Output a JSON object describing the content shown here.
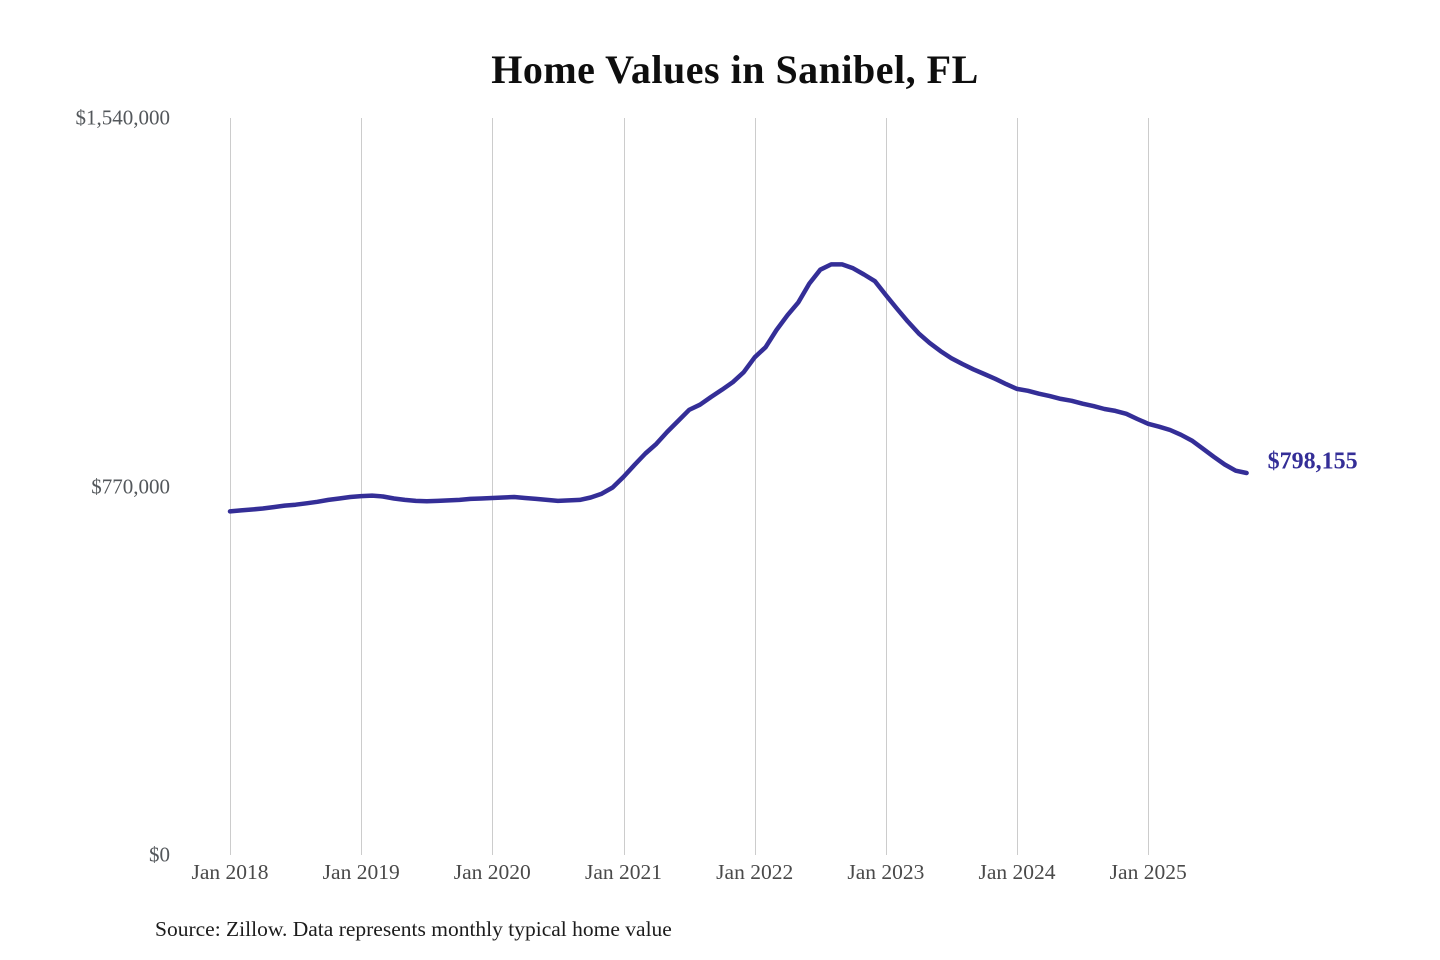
{
  "page": {
    "background": "#ffffff"
  },
  "chart_data": {
    "type": "line",
    "title": "Home Values in Sanibel, FL",
    "source_note": "Source: Zillow. Data represents monthly typical home value",
    "end_label": "$798,155",
    "end_value": 798155,
    "line_color": "#342e97",
    "grid": "vertical-only",
    "gridline_color": "#cccccc",
    "ylim": [
      0,
      1540000
    ],
    "y_ticks": [
      {
        "label": "$1,540,000",
        "value": 1540000
      },
      {
        "label": "$770,000",
        "value": 770000
      },
      {
        "label": "$0",
        "value": 0
      }
    ],
    "x_ticks": [
      {
        "label": "Jan 2018",
        "month_index": 0
      },
      {
        "label": "Jan 2019",
        "month_index": 12
      },
      {
        "label": "Jan 2020",
        "month_index": 24
      },
      {
        "label": "Jan 2021",
        "month_index": 36
      },
      {
        "label": "Jan 2022",
        "month_index": 48
      },
      {
        "label": "Jan 2023",
        "month_index": 60
      },
      {
        "label": "Jan 2024",
        "month_index": 72
      },
      {
        "label": "Jan 2025",
        "month_index": 84
      }
    ],
    "series": [
      {
        "name": "Monthly typical home value",
        "start": "Jan 2018",
        "interval": "monthly",
        "values": [
          718000,
          720000,
          722000,
          724000,
          727000,
          730000,
          732000,
          735000,
          738000,
          742000,
          745000,
          748000,
          750000,
          751000,
          749000,
          745000,
          742000,
          740000,
          739000,
          740000,
          741000,
          742000,
          744000,
          745000,
          746000,
          747000,
          748000,
          746000,
          744000,
          742000,
          740000,
          741000,
          742000,
          747000,
          755000,
          768000,
          790000,
          815000,
          839000,
          859000,
          884000,
          907000,
          930000,
          941000,
          957000,
          972000,
          988000,
          1009000,
          1040000,
          1061000,
          1097000,
          1128000,
          1155000,
          1194000,
          1223000,
          1234000,
          1234000,
          1226000,
          1213000,
          1199000,
          1170000,
          1142000,
          1115000,
          1090000,
          1070000,
          1053000,
          1038000,
          1026000,
          1015000,
          1005000,
          995000,
          984000,
          974000,
          970000,
          964000,
          959000,
          953000,
          949000,
          943000,
          938000,
          932000,
          928000,
          922000,
          911000,
          901000,
          895000,
          888000,
          878000,
          866000,
          849000,
          832000,
          816000,
          803000,
          798155
        ]
      }
    ]
  }
}
